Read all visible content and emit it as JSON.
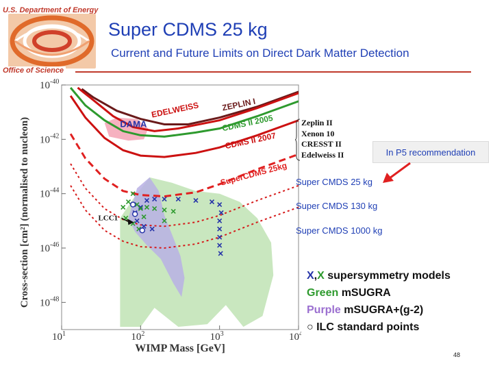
{
  "header": {
    "org": "U.S. Department of Energy",
    "office": "Office of Science",
    "title": "Super CDMS 25 kg",
    "subtitle": "Current and Future Limits on Direct Dark Matter Detection"
  },
  "chart_data": {
    "type": "line",
    "xscale": "log",
    "yscale": "log",
    "xlim": [
      10,
      10000
    ],
    "ylim": [
      1e-49,
      1e-40
    ],
    "xlabel": "WIMP Mass [GeV]",
    "ylabel": "Cross-section [cm²] (normalised to nucleon)",
    "x_ticks": [
      {
        "base": "10",
        "exp": "1"
      },
      {
        "base": "10",
        "exp": "2"
      },
      {
        "base": "10",
        "exp": "3"
      },
      {
        "base": "10",
        "exp": "4"
      }
    ],
    "y_ticks": [
      {
        "base": "10",
        "exp": "-40"
      },
      {
        "base": "10",
        "exp": "-42"
      },
      {
        "base": "10",
        "exp": "-44"
      },
      {
        "base": "10",
        "exp": "-46"
      },
      {
        "base": "10",
        "exp": "-48"
      }
    ],
    "regions": [
      {
        "name": "DAMA",
        "label": "DAMA",
        "color": "#f4a3b5",
        "outline": [
          [
            35,
            -41.4
          ],
          [
            50,
            -41.2
          ],
          [
            90,
            -41.25
          ],
          [
            125,
            -41.6
          ],
          [
            110,
            -42
          ],
          [
            70,
            -42.05
          ],
          [
            40,
            -41.9
          ]
        ]
      },
      {
        "name": "mSUGRA",
        "color": "#bfe3b4",
        "outline": [
          [
            55,
            -48.9
          ],
          [
            55,
            -44.9
          ],
          [
            80,
            -44.2
          ],
          [
            130,
            -43.4
          ],
          [
            250,
            -43.6
          ],
          [
            500,
            -43.9
          ],
          [
            1000,
            -44.0
          ],
          [
            1800,
            -44.3
          ],
          [
            3000,
            -44.9
          ],
          [
            4500,
            -45.8
          ],
          [
            4800,
            -47
          ],
          [
            3500,
            -48.5
          ],
          [
            2000,
            -48.9
          ],
          [
            1200,
            -48.1
          ],
          [
            700,
            -48.8
          ],
          [
            300,
            -48.9
          ],
          [
            150,
            -48.2
          ],
          [
            100,
            -48.9
          ]
        ]
      },
      {
        "name": "mSUGRA+(g-2)",
        "color": "#b9b0e4",
        "outline": [
          [
            70,
            -44.9
          ],
          [
            90,
            -43.8
          ],
          [
            130,
            -43.4
          ],
          [
            170,
            -43.9
          ],
          [
            200,
            -44.8
          ],
          [
            250,
            -45.5
          ],
          [
            320,
            -46.3
          ],
          [
            360,
            -47.1
          ],
          [
            330,
            -47.8
          ],
          [
            260,
            -47.3
          ],
          [
            180,
            -46.4
          ],
          [
            120,
            -45.9
          ],
          [
            85,
            -45.4
          ]
        ]
      }
    ],
    "series": [
      {
        "name": "ZEPLIN I",
        "label": "ZEPLIN I",
        "color": "#6a1a1a",
        "dash": "solid",
        "width": 3,
        "points": [
          [
            18,
            -40.15
          ],
          [
            25,
            -40.45
          ],
          [
            50,
            -40.95
          ],
          [
            100,
            -41.25
          ],
          [
            200,
            -41.45
          ],
          [
            400,
            -41.45
          ],
          [
            1000,
            -41.2
          ],
          [
            3000,
            -40.8
          ],
          [
            10000,
            -40.25
          ]
        ]
      },
      {
        "name": "EDELWEISS",
        "label": "EDELWEISS",
        "color": "#cc1111",
        "dash": "solid",
        "width": 3,
        "points": [
          [
            16,
            -40.1
          ],
          [
            25,
            -40.55
          ],
          [
            45,
            -41.15
          ],
          [
            80,
            -41.55
          ],
          [
            150,
            -41.7
          ],
          [
            300,
            -41.6
          ],
          [
            1000,
            -41.3
          ],
          [
            3000,
            -40.85
          ],
          [
            10000,
            -40.3
          ]
        ]
      },
      {
        "name": "CDMS II 2005",
        "label": "CDMS II 2005",
        "color": "#2e9a2e",
        "dash": "solid",
        "width": 3,
        "points": [
          [
            13,
            -40.1
          ],
          [
            20,
            -40.75
          ],
          [
            35,
            -41.3
          ],
          [
            60,
            -41.7
          ],
          [
            100,
            -41.85
          ],
          [
            200,
            -41.9
          ],
          [
            500,
            -41.75
          ],
          [
            1000,
            -41.6
          ],
          [
            3000,
            -41.15
          ],
          [
            10000,
            -40.6
          ]
        ]
      },
      {
        "name": "CDMS II 2007",
        "label": "CDMS II 2007",
        "color": "#cc1111",
        "dash": "solid",
        "width": 3,
        "points": [
          [
            13,
            -40.4
          ],
          [
            20,
            -41.2
          ],
          [
            35,
            -41.95
          ],
          [
            60,
            -42.4
          ],
          [
            100,
            -42.6
          ],
          [
            200,
            -42.65
          ],
          [
            500,
            -42.5
          ],
          [
            1000,
            -42.3
          ],
          [
            3000,
            -41.85
          ],
          [
            10000,
            -41.3
          ]
        ]
      },
      {
        "name": "SuperCDMS 25kg",
        "label": "SuperCDMS 25kg",
        "color": "#e02020",
        "dash": "10 6",
        "width": 3,
        "points": [
          [
            13,
            -41.8
          ],
          [
            20,
            -42.7
          ],
          [
            35,
            -43.45
          ],
          [
            60,
            -43.9
          ],
          [
            100,
            -44.05
          ],
          [
            200,
            -44.1
          ],
          [
            500,
            -43.95
          ],
          [
            1000,
            -43.65
          ],
          [
            3000,
            -43.1
          ],
          [
            10000,
            -42.55
          ]
        ]
      },
      {
        "name": "SuperCDMS 130kg",
        "label": "",
        "color": "#d61a1a",
        "dash": "3 4",
        "width": 2,
        "points": [
          [
            13,
            -42.9
          ],
          [
            20,
            -43.8
          ],
          [
            35,
            -44.55
          ],
          [
            60,
            -44.95
          ],
          [
            100,
            -45.15
          ],
          [
            200,
            -45.2
          ],
          [
            500,
            -45.05
          ],
          [
            1000,
            -44.8
          ],
          [
            3000,
            -44.25
          ],
          [
            10000,
            -43.7
          ]
        ]
      },
      {
        "name": "SuperCDMS 1000kg",
        "label": "",
        "color": "#d61a1a",
        "dash": "3 4",
        "width": 2,
        "points": [
          [
            13,
            -43.7
          ],
          [
            20,
            -44.6
          ],
          [
            35,
            -45.35
          ],
          [
            60,
            -45.75
          ],
          [
            100,
            -45.95
          ],
          [
            200,
            -46.0
          ],
          [
            500,
            -45.85
          ],
          [
            1000,
            -45.6
          ],
          [
            3000,
            -45.05
          ],
          [
            10000,
            -44.5
          ]
        ]
      }
    ],
    "scatter_sets": [
      {
        "name": "blue-X models",
        "symbol": "x",
        "color": "#2533a8",
        "points": [
          [
            85,
            -44.7
          ],
          [
            100,
            -44.5
          ],
          [
            120,
            -44.25
          ],
          [
            150,
            -44.2
          ],
          [
            200,
            -44.2
          ],
          [
            300,
            -44.2
          ],
          [
            500,
            -44.25
          ],
          [
            800,
            -44.3
          ],
          [
            1000,
            -44.4
          ],
          [
            1050,
            -44.7
          ],
          [
            1000,
            -45.0
          ],
          [
            1000,
            -45.3
          ],
          [
            1000,
            -45.6
          ],
          [
            1000,
            -45.9
          ],
          [
            1030,
            -46.2
          ],
          [
            90,
            -45.0
          ],
          [
            110,
            -45.2
          ],
          [
            140,
            -45.3
          ]
        ]
      },
      {
        "name": "green-X models",
        "symbol": "x",
        "color": "#2e9a2e",
        "points": [
          [
            60,
            -44.5
          ],
          [
            70,
            -44.3
          ],
          [
            80,
            -44.0
          ],
          [
            90,
            -44.4
          ],
          [
            100,
            -44.55
          ],
          [
            110,
            -44.85
          ],
          [
            120,
            -44.5
          ],
          [
            150,
            -44.55
          ],
          [
            200,
            -44.6
          ],
          [
            260,
            -44.65
          ],
          [
            65,
            -44.9
          ],
          [
            80,
            -45.1
          ],
          [
            95,
            -45.3
          ],
          [
            200,
            -45.0
          ]
        ]
      }
    ],
    "ilc_points": [
      {
        "x": 80,
        "y": -44.4
      },
      {
        "x": 85,
        "y": -44.75
      },
      {
        "x": 105,
        "y": -45.35
      }
    ],
    "annotations": [
      {
        "text": "LCC1",
        "x": 40,
        "y": -44.9
      }
    ]
  },
  "experiments": [
    "Zeplin II",
    "Xenon 10",
    "CRESST II",
    "Edelweiss II"
  ],
  "p5_box": "In P5 recommendation",
  "targets": {
    "kg25": "Super CMDS 25 kg",
    "kg130": "Super CMDS 130 kg",
    "kg1000": "Super CMDS 1000 kg"
  },
  "legend": {
    "line1_x1": "X",
    "line1_sep": ",",
    "line1_x2": "X",
    "line1_rest": " supersymmetry models",
    "line2_color": "Green",
    "line2_rest": " mSUGRA",
    "line3_color": "Purple",
    "line3_rest": " mSUGRA+(g-2)",
    "line4": "○ ILC standard points"
  },
  "page_number": "48",
  "colors": {
    "title": "#1f3fb5",
    "accent": "#c0392b"
  }
}
